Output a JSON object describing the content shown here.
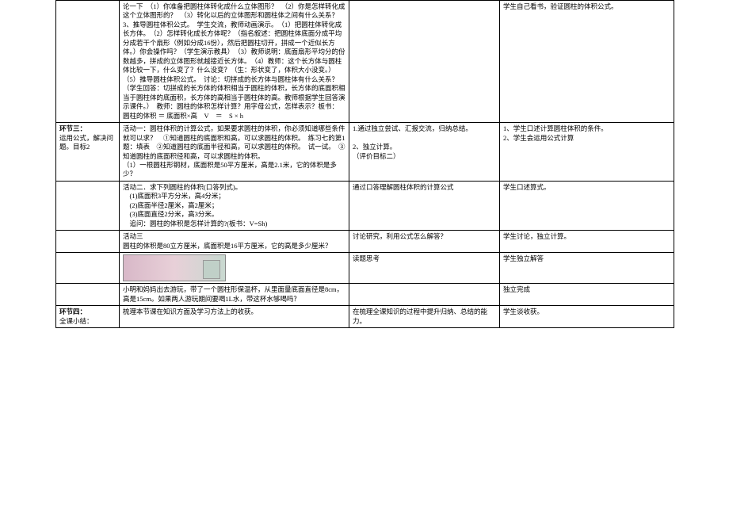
{
  "colors": {
    "text": "#000000",
    "border": "#000000",
    "background": "#ffffff",
    "placeholder_grad_a": "#d8b8c8",
    "placeholder_grad_b": "#e8d0d8",
    "placeholder_grad_c": "#c8d8d0"
  },
  "typography": {
    "base_font": "SimSun",
    "base_size_pt": 8.5,
    "line_height": 1.35
  },
  "rows": [
    {
      "c1": "",
      "c2": "论一下　（1）你准备把圆柱体转化成什么立体图形？　（2）你是怎样转化成这个立体图形的？　（3）转化以后的立体图形和圆柱体之间有什么关系？\n3、推导圆柱体积公式。　学生交流，教师动画演示。　（1）把圆柱体转化成长方体。　（2）怎样转化成长方体呢？（指名叙述：把圆柱体底面分成平均分成若干个扇形（例如分成16份），然后把圆柱切开，拼成一个近似长方体。）你会操作吗？（学生演示教具）　（3）教师说明：底面扇形平均分的份数越多，拼成的立体图形就越接近长方体。　（4）教师：这个长方体与圆柱体比较一下，什么变了？什么没变？（生：形状变了，体积大小没变。）　（5）推导圆柱体积公式。　讨论：切拼成的长方体与圆柱体有什么关系？（学生回答：切拼成的长方体的体积相当于圆柱的体积，长方体的底面积相当于圆柱体的底面积，长方体的高相当于圆柱体的高。教师根据学生回答演示课件。）　教师：圆柱的体积怎样计算？用字母公式，怎样表示？板书：　圆柱的体积 ＝ 底面积×高　V　＝　S × h",
      "c3": "",
      "c4": "学生自己看书，验证圆柱的体积公式。"
    },
    {
      "c1_bold": "环节三：",
      "c1_rest": "运用公式，解决问题。目标2",
      "c2": "活动一：圆柱体积的计算公式，如果要求圆柱的体积，你必须知道哪些条件就可以求？　①知道圆柱的底面积和高，可以求圆柱的体积。　练习七的第1题：填表　②知道圆柱的底面半径和高，可以求圆柱的体积。　试一试。　③知道圆柱的底面积径和高，可以求圆柱的体积。\n（1）一根圆柱形钢材，底面积是50平方厘米，高是2.1米，它的体积是多少？",
      "c3": "1.通过独立尝试、汇报交流，归纳总结。\n\n2、独立计算。\n（评价目标二）",
      "c4": "1、学生口述计算圆柱体积的条件。\n2、学生会运用公式计算"
    },
    {
      "c1": "",
      "c2": "活动二．求下列圆柱的体积(口答列式)。\n　(1)底面积3平方分米，高4分米；\n　(2)底面半径2厘米，高2厘米；\n　(3)底面直径2分米，高3分米。\n　追问：圆柱的体积是怎样计算的?(板书：V=Sh)",
      "c3": "通过口答理解圆柱体积的计算公式",
      "c4": "学生口述算式。"
    },
    {
      "c1": "",
      "c2": "活动三\n圆柱的体积是80立方厘米，底面积是16平方厘米，它的高是多少厘米？",
      "c3": "讨论研究，利用公式怎么解答？",
      "c4": "学生讨论，独立计算。"
    },
    {
      "c1": "",
      "c2_image": true,
      "c2": "",
      "c3": "读题思考",
      "c4": "学生独立解答"
    },
    {
      "c1": "",
      "c2": "小明和妈妈出去游玩，带了一个圆柱形保温杯，从里面量底面直径是8cm，高是15cm。如果两人游玩期间要喝1L水，带这杯水够喝吗？",
      "c3": "",
      "c4": "独立完成"
    },
    {
      "c1_bold": "环节四：",
      "c1_rest": "全课小结：",
      "c2": "梳理本节课在知识方面及学习方法上的收获。",
      "c3": "在梳理全课知识的过程中提升归纳、总结的能力。",
      "c4": "学生谈收获。"
    }
  ]
}
